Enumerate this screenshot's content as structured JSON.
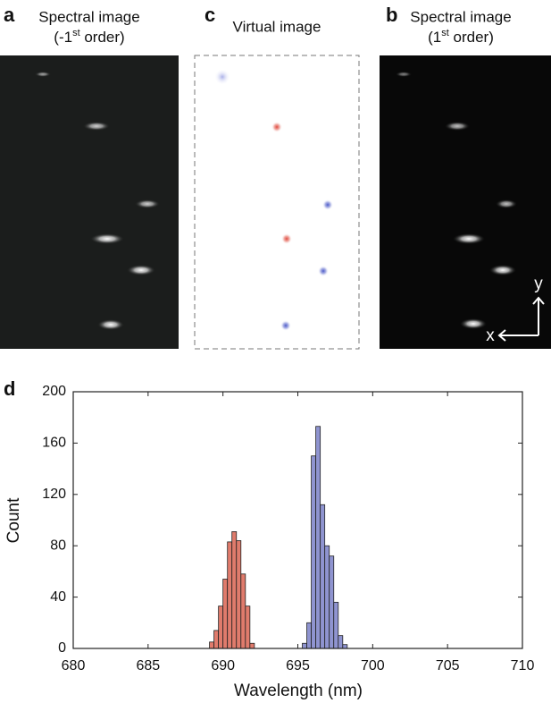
{
  "panels": [
    {
      "label": "a",
      "title": "Spectral image",
      "subtitle": [
        "(-1",
        "st",
        " order)"
      ]
    },
    {
      "label": "c",
      "title": "Virtual image"
    },
    {
      "label": "b",
      "title": "Spectral image",
      "subtitle": [
        "(1",
        "st",
        " order)"
      ]
    }
  ],
  "axes_arrows": {
    "x": "x",
    "y": "y"
  },
  "chart_data": {
    "type": "histogram",
    "panel_label": "d",
    "xlabel": "Wavelength (nm)",
    "ylabel": "Count",
    "xlim": [
      680,
      710
    ],
    "xticks": [
      680,
      685,
      690,
      695,
      700,
      705,
      710
    ],
    "ylim": [
      0,
      200
    ],
    "yticks": [
      0,
      40,
      80,
      120,
      160,
      200
    ],
    "series": [
      {
        "color": "#e07b6c",
        "bins": [
          689.1,
          689.4,
          689.7,
          690.0,
          690.3,
          690.6,
          690.9,
          691.2,
          691.5,
          691.8,
          692.1
        ],
        "values": [
          5,
          14,
          33,
          54,
          83,
          91,
          84,
          58,
          33,
          4
        ]
      },
      {
        "color": "#8f94d0",
        "bins": [
          695.3,
          695.6,
          695.9,
          696.2,
          696.5,
          696.8,
          697.1,
          697.4,
          697.7,
          698.0,
          698.3
        ],
        "values": [
          4,
          20,
          150,
          173,
          112,
          80,
          72,
          36,
          10,
          3
        ]
      }
    ]
  }
}
